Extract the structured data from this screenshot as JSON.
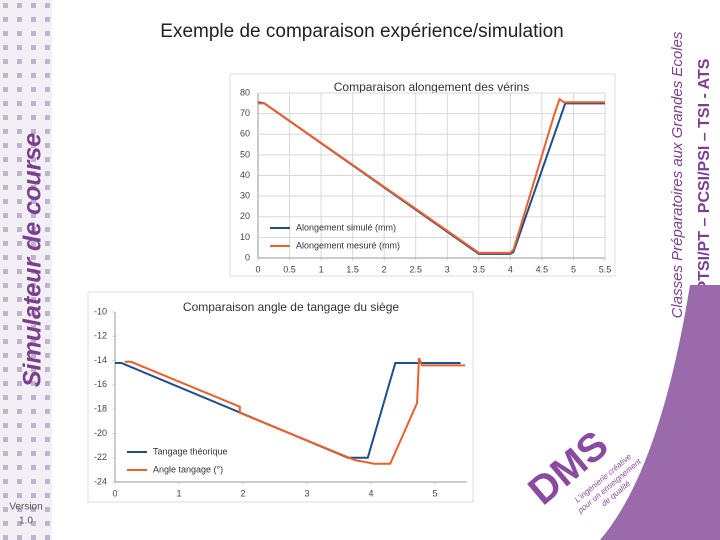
{
  "slide": {
    "title": "Exemple de comparaison expérience/simulation",
    "side_title": "Simulateur de course",
    "version": [
      "Version",
      "1.0"
    ],
    "right_text_1": "Classes Préparatoires aux Grandes Ecoles",
    "right_text_2": "PTSI/PT – PCSI/PSI – TSI - ATS",
    "logo": "DMS",
    "logo_tagline": [
      "L'ingénierie créative",
      "pour un enseignement",
      "de qualité"
    ]
  },
  "chart_data": [
    {
      "type": "line",
      "title": "Comparaison alongement des vérins",
      "grid": true,
      "legend": "lower left",
      "xlim": [
        0,
        5.5
      ],
      "ylim": [
        0,
        80
      ],
      "xticks": [
        0,
        0.5,
        1,
        1.5,
        2,
        2.5,
        3,
        3.5,
        4,
        4.5,
        5,
        5.5
      ],
      "yticks": [
        0,
        10,
        20,
        30,
        40,
        50,
        60,
        70,
        80
      ],
      "series": [
        {
          "name": "Alongement simulé (mm)",
          "color": "#1f4e8c",
          "x": [
            0,
            0.1,
            3.5,
            4.0,
            4.05,
            4.87,
            5.5
          ],
          "values": [
            75.5,
            75,
            2,
            2,
            3,
            75,
            75
          ]
        },
        {
          "name": "Alongement mesuré (mm)",
          "color": "#e8602c",
          "x": [
            0,
            0.1,
            3.5,
            4.0,
            4.05,
            4.7,
            4.78,
            4.85,
            5.5
          ],
          "values": [
            75,
            75,
            2.5,
            2.5,
            4,
            70,
            77,
            75.5,
            75.5
          ]
        }
      ]
    },
    {
      "type": "line",
      "title": "Comparaison angle de tangage du siège",
      "grid": false,
      "legend": "lower left",
      "xlim": [
        0,
        5.5
      ],
      "ylim": [
        -24,
        -10
      ],
      "xticks": [
        0,
        1,
        2,
        3,
        4,
        5
      ],
      "yticks": [
        -10,
        -12,
        -14,
        -16,
        -18,
        -20,
        -22,
        -24
      ],
      "series": [
        {
          "name": "Tangage théorique",
          "color": "#1f4e8c",
          "x": [
            0,
            0.1,
            3.64,
            3.95,
            4.38,
            5.4
          ],
          "values": [
            -14.2,
            -14.2,
            -22,
            -22,
            -14.2,
            -14.2
          ]
        },
        {
          "name": "Angle tangage (°)",
          "color": "#e8602c",
          "x": [
            0.15,
            0.25,
            1.95,
            1.95,
            3.75,
            4.05,
            4.3,
            4.72,
            4.75,
            4.8,
            5.47
          ],
          "values": [
            -14.1,
            -14.1,
            -17.8,
            -18.3,
            -22.2,
            -22.5,
            -22.5,
            -17.5,
            -13.8,
            -14.4,
            -14.4
          ]
        }
      ]
    }
  ]
}
